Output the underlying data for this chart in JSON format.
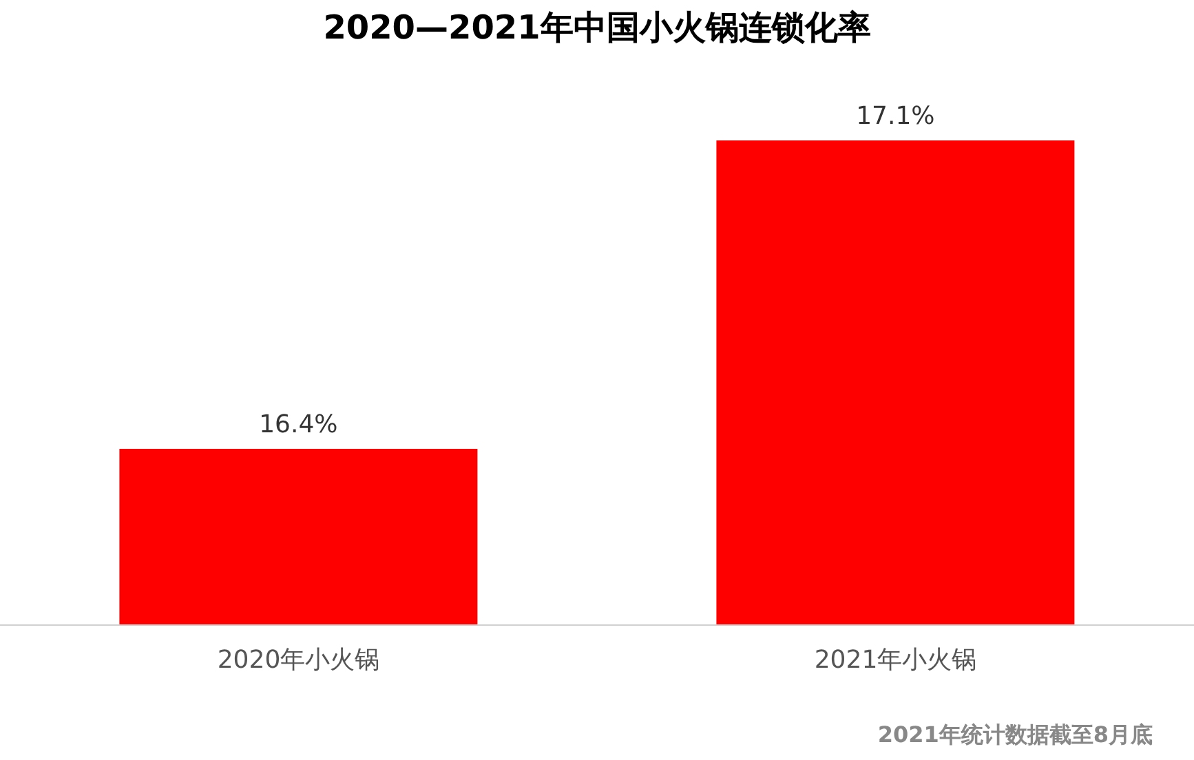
{
  "chart_data": {
    "type": "bar",
    "title": "2020—2021年中国小火锅连锁化率",
    "categories": [
      "2020年小火锅",
      "2021年小火锅"
    ],
    "values": [
      16.4,
      17.1
    ],
    "value_labels": [
      "16.4%",
      "17.1%"
    ],
    "color": "#ff0000",
    "ylim": [
      16,
      17.1
    ],
    "tick_labels": "x",
    "annotations": [
      "2021年统计数据截至8月底"
    ]
  }
}
